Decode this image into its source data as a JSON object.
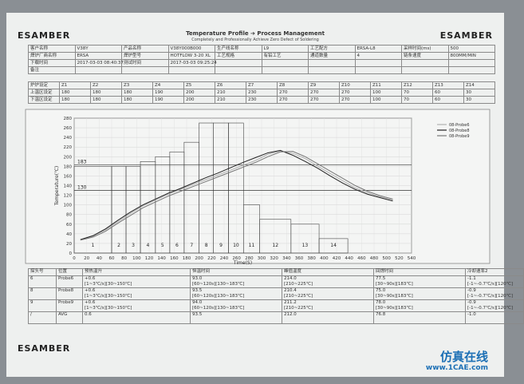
{
  "header": {
    "left_logo": "ESAMBER",
    "right_logo": "ESAMBER",
    "title": "Temperature Profile ➔ Process Management",
    "subtitle": "Completely and Professionally Achieve Zero Defect of Soldering"
  },
  "info": {
    "rows": [
      [
        "客户名称",
        "V38Y",
        "产品名称",
        "V38Y000B000",
        "生产线名称",
        "L9",
        "工艺配方",
        "ERSA-L8",
        "采样时间(ms)",
        "500"
      ],
      [
        "焊炉厂商名称",
        "ERSA",
        "焊炉型号",
        "HOTFLOW 3-20 XL",
        "工艺规格",
        "有铅工艺",
        "通道数量",
        "4",
        "链条速度",
        "800MM/MIN"
      ],
      [
        "下载时间",
        "2017-03-03 08:40:37",
        "测试时间",
        "2017-03-03 09:25:24"
      ],
      [
        "备注"
      ]
    ]
  },
  "zones": {
    "header": [
      "炉炉设定",
      "Z1",
      "Z2",
      "Z3",
      "Z4",
      "Z5",
      "Z6",
      "Z7",
      "Z8",
      "Z9",
      "Z10",
      "Z11",
      "Z12",
      "Z13",
      "Z14"
    ],
    "rows": [
      [
        "上温区设定",
        180,
        180,
        180,
        190,
        200,
        210,
        230,
        270,
        270,
        270,
        100,
        70,
        60,
        30
      ],
      [
        "下温区设定",
        180,
        180,
        180,
        190,
        200,
        210,
        230,
        270,
        270,
        270,
        100,
        70,
        60,
        30
      ]
    ]
  },
  "chart_data": {
    "type": "line",
    "ylabel": "Temperature(℃)",
    "xlabel": "Time(S)",
    "x": [
      10,
      30,
      50,
      70,
      90,
      110,
      130,
      150,
      170,
      190,
      210,
      230,
      250,
      270,
      290,
      310,
      330,
      350,
      370,
      390,
      410,
      430,
      450,
      470,
      490,
      510
    ],
    "series": [
      {
        "name": "08-Probe6",
        "color": "#b0b0b0",
        "values": [
          28,
          35,
          48,
          65,
          82,
          98,
          110,
          122,
          132,
          142,
          152,
          162,
          172,
          182,
          192,
          205,
          212,
          207,
          196,
          180,
          165,
          150,
          135,
          125,
          117,
          110
        ]
      },
      {
        "name": "08-Probe8",
        "color": "#222222",
        "values": [
          28,
          36,
          50,
          68,
          85,
          100,
          112,
          124,
          134,
          145,
          156,
          166,
          177,
          188,
          198,
          208,
          213,
          203,
          190,
          176,
          160,
          145,
          132,
          122,
          115,
          108
        ]
      },
      {
        "name": "08-Probe9",
        "color": "#777777",
        "values": [
          27,
          33,
          45,
          62,
          78,
          94,
          106,
          118,
          128,
          138,
          148,
          158,
          168,
          178,
          188,
          200,
          210,
          211,
          200,
          185,
          170,
          155,
          140,
          128,
          119,
          112
        ]
      }
    ],
    "xlim": [
      0,
      540
    ],
    "ylim": [
      0,
      280
    ],
    "xticks": [
      0,
      20,
      40,
      60,
      80,
      100,
      120,
      140,
      160,
      180,
      200,
      220,
      240,
      260,
      280,
      300,
      320,
      340,
      360,
      380,
      400,
      420,
      440,
      460,
      480,
      500,
      520,
      540
    ],
    "yticks": [
      0,
      20,
      40,
      60,
      80,
      100,
      120,
      140,
      160,
      180,
      200,
      220,
      240,
      260,
      280
    ],
    "reference_lines": [
      {
        "value": 183,
        "label": "183"
      },
      {
        "value": 130,
        "label": "130"
      }
    ],
    "zone_edges": [
      0,
      60,
      83,
      106,
      130,
      153,
      176,
      200,
      223,
      247,
      271,
      297,
      347,
      392,
      438
    ],
    "zone_labels": [
      "1",
      "2",
      "3",
      "4",
      "5",
      "6",
      "7",
      "8",
      "9",
      "10",
      "11",
      "12",
      "13",
      "14"
    ],
    "grid": true,
    "legend": "upper right"
  },
  "results": {
    "header": [
      "探头号",
      "位置",
      "预热温升",
      "恒温时间",
      "峰值温度",
      "回焊时间",
      "冷却速率2"
    ],
    "rows": [
      [
        "6",
        "Probe6",
        [
          "+0.6",
          "[1~3℃/s][30~150℃]"
        ],
        [
          "93.0",
          "[60~120s][130~183℃]"
        ],
        [
          "214.0",
          "[210~225℃]"
        ],
        [
          "77.5",
          "[30~90s][183℃]"
        ],
        [
          "-1.1",
          "[-1~-0.7℃/s][120℃]"
        ]
      ],
      [
        "8",
        "Probe8",
        [
          "+0.6",
          "[1~3℃/s][30~150℃]"
        ],
        [
          "93.5",
          "[60~120s][130~183℃]"
        ],
        [
          "210.4",
          "[210~225℃]"
        ],
        [
          "75.0",
          "[30~90s][183℃]"
        ],
        [
          "-0.9",
          "[-1~-0.7℃/s][120℃]"
        ]
      ],
      [
        "9",
        "Probe9",
        [
          "+0.6",
          "[1~3℃/s][30~150℃]"
        ],
        [
          "94.0",
          "[60~120s][130~183℃]"
        ],
        [
          "211.2",
          "[210~225℃]"
        ],
        [
          "78.0",
          "[30~90s][183℃]"
        ],
        [
          "-0.9",
          "[-1~-0.7℃/s][120℃]"
        ]
      ],
      [
        "/",
        "AVG",
        [
          "0.6"
        ],
        [
          "93.5"
        ],
        [
          "212.0"
        ],
        [
          "76.8"
        ],
        [
          "-1.0"
        ]
      ]
    ]
  },
  "footer": {
    "logo": "ESAMBER",
    "watermark": "仿真在线",
    "watermark_url": "www.1CAE.com"
  }
}
